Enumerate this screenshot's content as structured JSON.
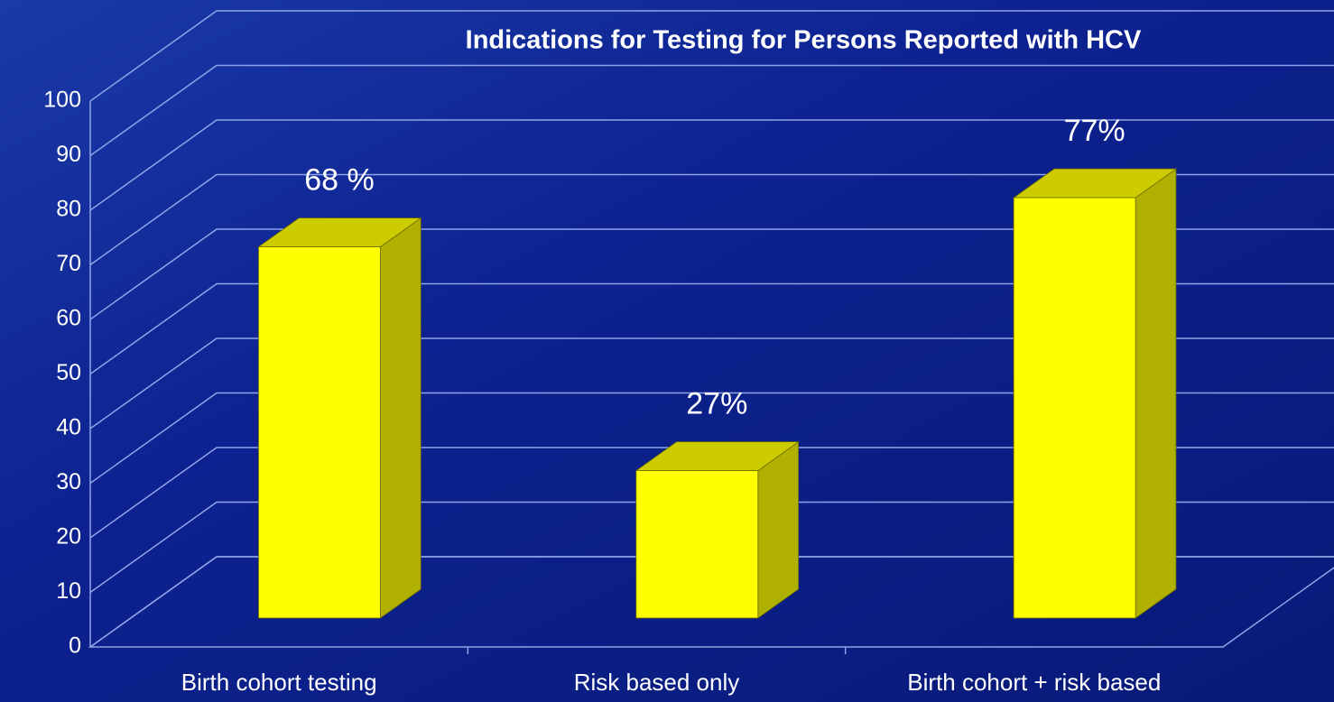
{
  "chart_data": {
    "type": "bar3d",
    "title": "Indications for Testing  for Persons Reported with HCV",
    "categories": [
      "Birth cohort testing",
      "Risk based only",
      "Birth cohort + risk based"
    ],
    "values": [
      68,
      27,
      77
    ],
    "value_labels": [
      "68 %",
      "27%",
      "77%"
    ],
    "color": "#ffff00",
    "ylim": [
      0,
      100
    ],
    "yticks": [
      0,
      10,
      20,
      30,
      40,
      50,
      60,
      70,
      80,
      90,
      100
    ],
    "grid": true
  }
}
